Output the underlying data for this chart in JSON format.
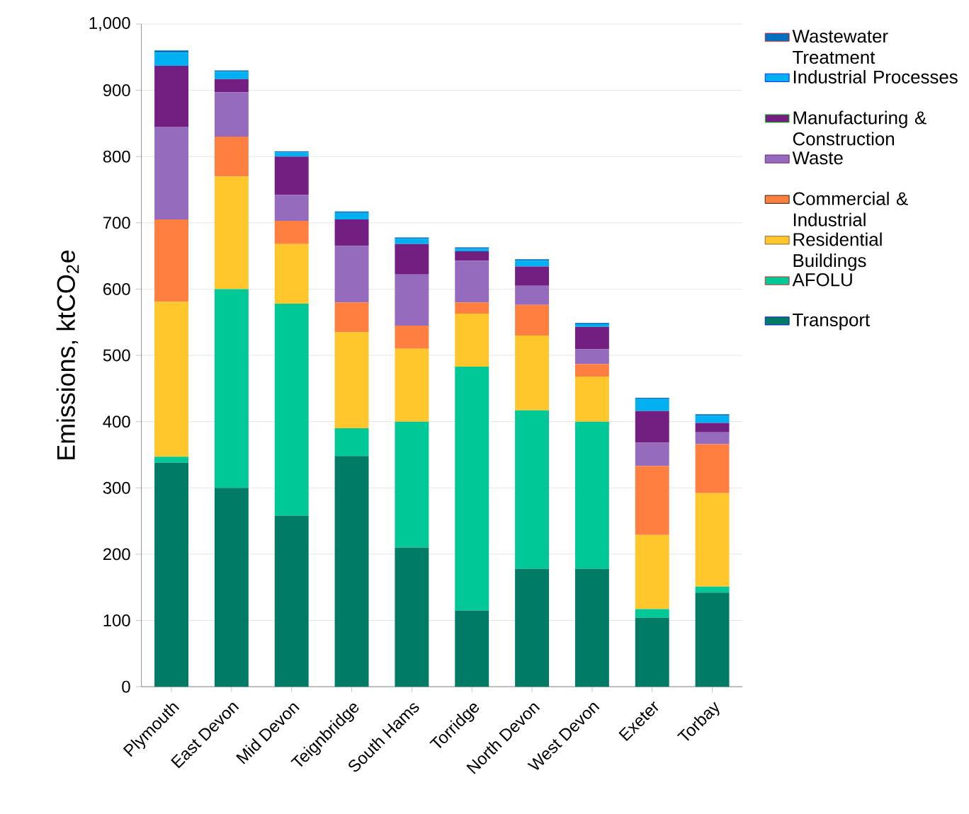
{
  "chart_data": {
    "type": "bar",
    "stacked": true,
    "ylabel": "Emissions, ktCO$_{2}$e",
    "categories": [
      "Plymouth",
      "East Devon",
      "Mid Devon",
      "Teignbridge",
      "South Hams",
      "Torridge",
      "North Devon",
      "West Devon",
      "Exeter",
      "Torbay"
    ],
    "series": [
      {
        "name": "Transport",
        "color": "#007b65",
        "values": [
          338,
          300,
          258,
          348,
          210,
          115,
          178,
          178,
          104,
          142
        ]
      },
      {
        "name": "AFOLU",
        "color": "#00c896",
        "values": [
          9,
          300,
          320,
          42,
          190,
          368,
          239,
          222,
          13,
          9
        ]
      },
      {
        "name": "Residential Buildings",
        "color": "#ffc72c",
        "values": [
          234,
          170,
          90,
          145,
          110,
          80,
          113,
          68,
          112,
          141
        ]
      },
      {
        "name": "Commercial & Industrial",
        "color": "#ff7f41",
        "values": [
          124,
          60,
          35,
          45,
          35,
          17,
          46,
          19,
          104,
          74
        ]
      },
      {
        "name": "Waste",
        "color": "#956bbd",
        "values": [
          140,
          67,
          39,
          85,
          77,
          63,
          29,
          22,
          35,
          18
        ]
      },
      {
        "name": "Manufacturing & Construction",
        "color": "#721f81",
        "values": [
          92,
          20,
          58,
          40,
          46,
          14,
          29,
          34,
          48,
          14
        ]
      },
      {
        "name": "Industrial Processes",
        "color": "#00b0f0",
        "values": [
          20,
          11,
          6,
          10,
          8,
          4,
          9,
          4,
          18,
          11
        ]
      },
      {
        "name": "Wastewater Treatment",
        "color": "#0070c0",
        "values": [
          3,
          2,
          2,
          2,
          2,
          2,
          2,
          2,
          2,
          2
        ]
      }
    ],
    "ylim": [
      0,
      1000
    ],
    "yticks": [
      0,
      100,
      200,
      300,
      400,
      500,
      600,
      700,
      800,
      900,
      {
        "value": 1000,
        "label": "1,000"
      }
    ],
    "grid": "y",
    "legend": "right"
  }
}
